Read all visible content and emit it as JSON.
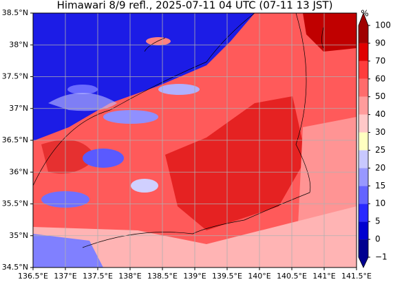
{
  "title": "Himawari 8/9 refl., 2025-07-11 04 UTC (07-11 13 JST)",
  "xlim": [
    136.5,
    141.5
  ],
  "ylim": [
    34.5,
    38.5
  ],
  "xticks": [
    {
      "value": 136.5,
      "label": "136.5°E"
    },
    {
      "value": 137,
      "label": "137°E"
    },
    {
      "value": 137.5,
      "label": "137.5°E"
    },
    {
      "value": 138,
      "label": "138°E"
    },
    {
      "value": 138.5,
      "label": "138.5°E"
    },
    {
      "value": 139,
      "label": "139°E"
    },
    {
      "value": 139.5,
      "label": "139.5°E"
    },
    {
      "value": 140,
      "label": "140°E"
    },
    {
      "value": 140.5,
      "label": "140.5°E"
    },
    {
      "value": 141,
      "label": "141°E"
    },
    {
      "value": 141.5,
      "label": "141.5°E"
    }
  ],
  "yticks": [
    {
      "value": 34.5,
      "label": "34.5°N"
    },
    {
      "value": 35,
      "label": "35°N"
    },
    {
      "value": 35.5,
      "label": "35.5°N"
    },
    {
      "value": 36,
      "label": "36°N"
    },
    {
      "value": 36.5,
      "label": "36.5°N"
    },
    {
      "value": 37,
      "label": "37°N"
    },
    {
      "value": 37.5,
      "label": "37.5°N"
    },
    {
      "value": 38,
      "label": "38°N"
    },
    {
      "value": 38.5,
      "label": "38.5°N"
    }
  ],
  "grid": true,
  "colorbar": {
    "unit": "%",
    "levels": [
      {
        "value": -1,
        "label": "−1"
      },
      0,
      5,
      10,
      15,
      20,
      25,
      30,
      40,
      50,
      60,
      70,
      90,
      100
    ],
    "colors": [
      "#000090",
      "#0000d0",
      "#2828ff",
      "#6464ff",
      "#9898ff",
      "#c8c8ff",
      "#ffffc0",
      "#ffc8c8",
      "#ff9c9c",
      "#ff6c6c",
      "#ff3c3c",
      "#e00000",
      "#a00000"
    ]
  }
}
